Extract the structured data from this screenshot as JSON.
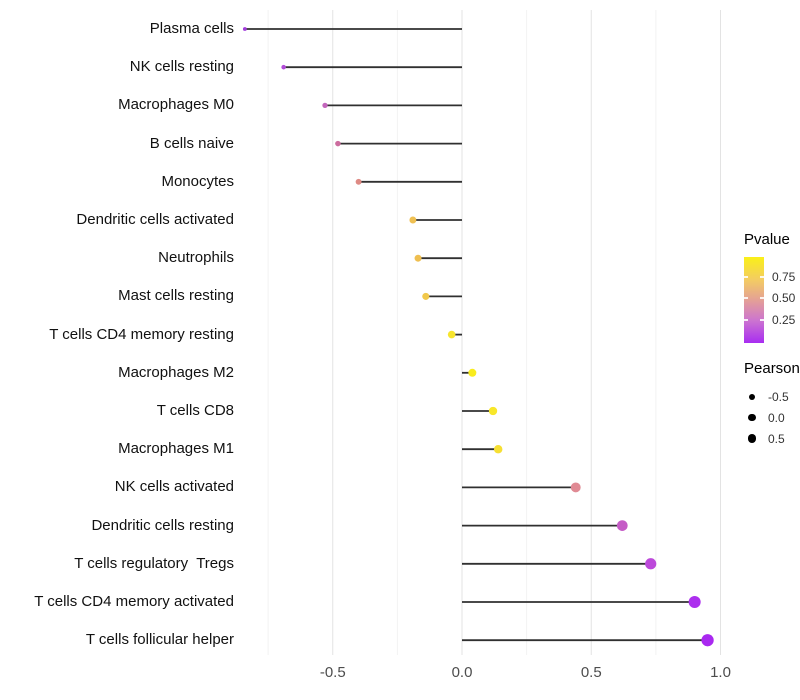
{
  "chart_data": {
    "type": "scatter",
    "variant": "lollipop",
    "title": "",
    "xlabel": "",
    "ylabel": "",
    "categories": [
      "Plasma cells",
      "NK cells resting",
      "Macrophages M0",
      "B cells naive",
      "Monocytes",
      "Dendritic cells activated",
      "Neutrophils",
      "Mast cells resting",
      "T cells CD4 memory resting",
      "Macrophages M2",
      "T cells CD8",
      "Macrophages M1",
      "NK cells activated",
      "Dendritic cells resting",
      "T cells regulatory  Tregs",
      "T cells CD4 memory activated",
      "T cells follicular helper"
    ],
    "series": [
      {
        "name": "Pearson",
        "values": [
          -0.84,
          -0.69,
          -0.53,
          -0.48,
          -0.4,
          -0.19,
          -0.17,
          -0.14,
          -0.04,
          0.04,
          0.12,
          0.14,
          0.44,
          0.62,
          0.73,
          0.9,
          0.95
        ]
      }
    ],
    "point_colors": [
      "#A13BDB",
      "#B24CD8",
      "#C366BC",
      "#CC6C9E",
      "#DE8A84",
      "#EFC052",
      "#EFBF50",
      "#F1C84B",
      "#F7E52E",
      "#F9EC1E",
      "#F8E72A",
      "#F6DF33",
      "#E08A94",
      "#C55CC6",
      "#BC49DA",
      "#AC2FEE",
      "#A928F0"
    ],
    "xlim": [
      -0.86,
      1.06
    ],
    "x_major_ticks": [
      -0.5,
      0.0,
      0.5,
      1.0
    ],
    "x_tick_labels": [
      "-0.5",
      "0.0",
      "0.5",
      "1.0"
    ],
    "x_minor_ticks": [
      -0.75,
      -0.25,
      0.25,
      0.75
    ],
    "grid": "vertical major and minor, no horizontal, white background",
    "colors": {
      "grid_major": "#E3E3E3",
      "grid_minor": "#F2F2F2",
      "stem": "#303030",
      "axis_text": "#4d4d4d"
    },
    "legend": {
      "position": "right",
      "pvalue": {
        "title": "Pvalue",
        "tick_labels": [
          "0.75",
          "0.50",
          "0.25"
        ],
        "gradient_stops": [
          "#FAF018 0%",
          "#F3CB64 27%",
          "#E4A096 50%",
          "#CC74D0 74%",
          "#A82DF1 100%"
        ]
      },
      "pearson": {
        "title": "Pearson",
        "items": [
          {
            "label": "-0.5",
            "diameter": 6
          },
          {
            "label": "0.0",
            "diameter": 7.4
          },
          {
            "label": "0.5",
            "diameter": 8.8
          }
        ]
      }
    }
  }
}
